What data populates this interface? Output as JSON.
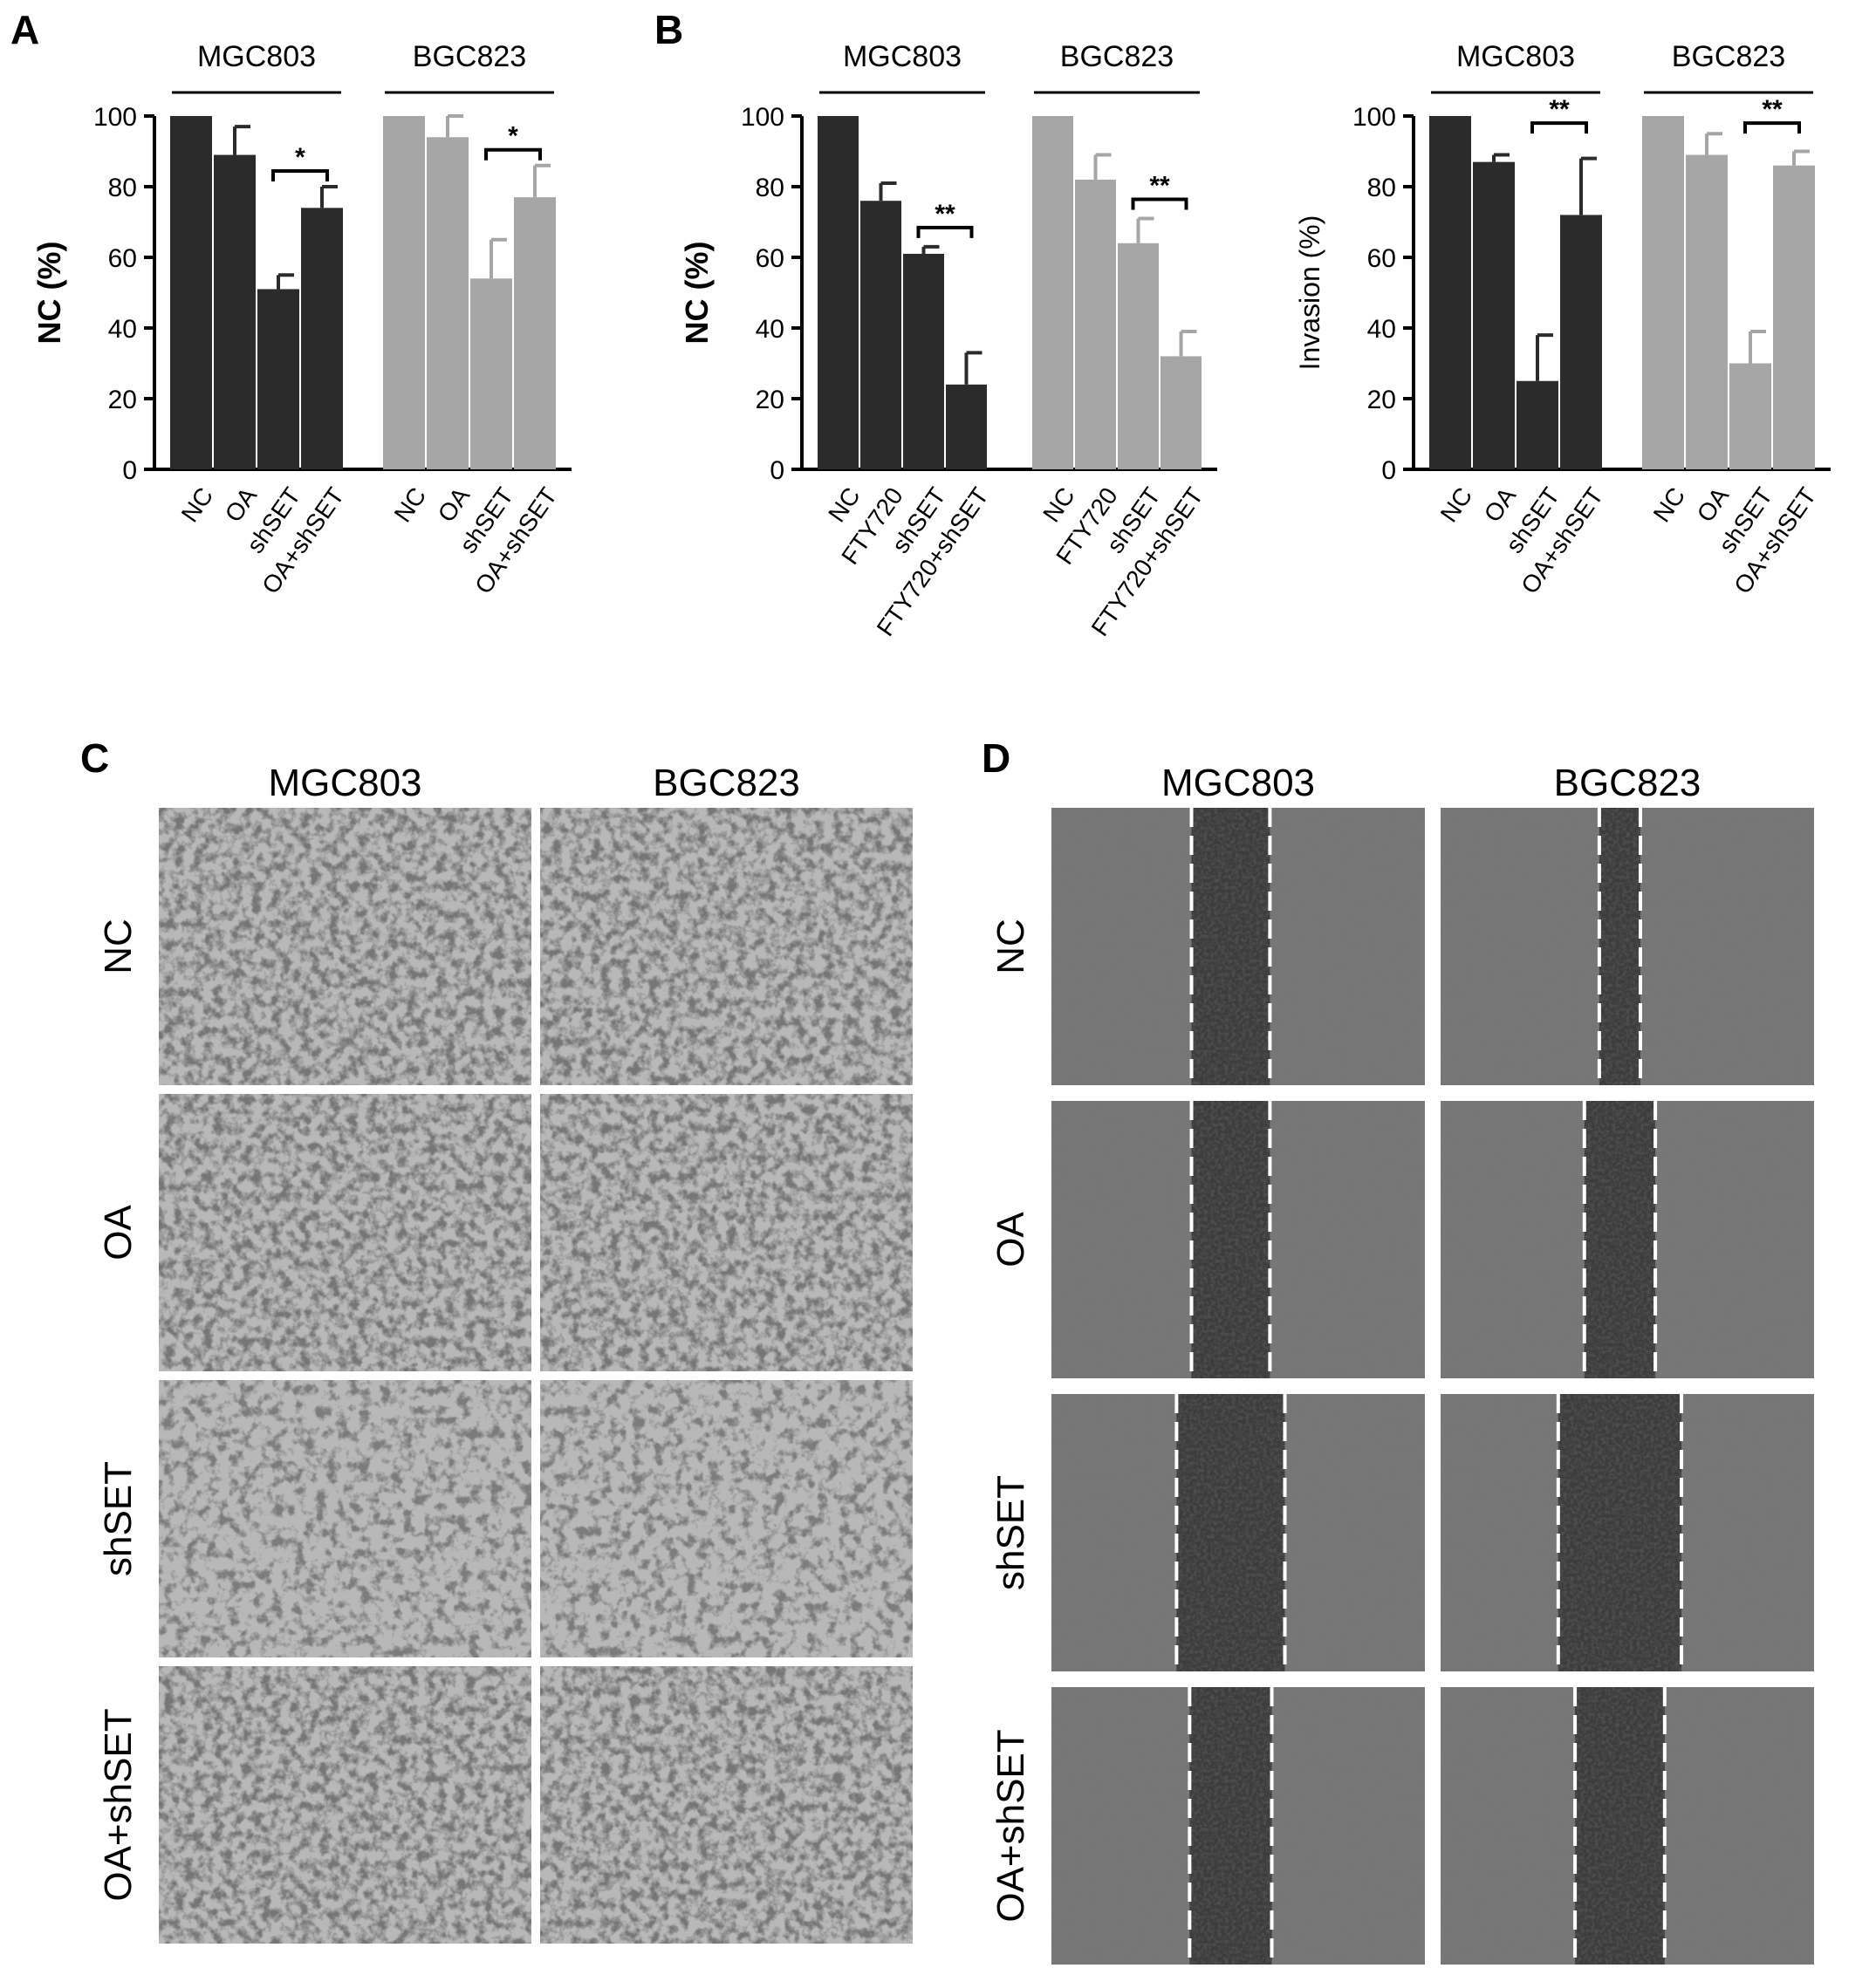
{
  "panel_labels": {
    "a": "A",
    "b": "B",
    "c": "C",
    "d": "D"
  },
  "colors": {
    "dark_bar": "#2b2b2b",
    "light_bar": "#a6a6a6",
    "axis": "#000000",
    "micro_bg": "#8a8a8a",
    "scratch_fill": "#3c3c3c",
    "dash_line": "#ffffff"
  },
  "chart_data": [
    {
      "id": "A",
      "type": "bar",
      "ylabel": "NC (%)",
      "ylim": [
        0,
        100
      ],
      "yticks": [
        0,
        20,
        40,
        60,
        80,
        100
      ],
      "groups": [
        {
          "name": "MGC803",
          "color": "dark",
          "categories": [
            "NC",
            "OA",
            "shSET",
            "OA+shSET"
          ],
          "values": [
            100,
            89,
            51,
            74
          ],
          "errors": [
            0,
            8,
            4,
            6
          ],
          "sig": {
            "between": [
              2,
              3
            ],
            "label": "*"
          }
        },
        {
          "name": "BGC823",
          "color": "light",
          "categories": [
            "NC",
            "OA",
            "shSET",
            "OA+shSET"
          ],
          "values": [
            100,
            94,
            54,
            77
          ],
          "errors": [
            0,
            6,
            11,
            9
          ],
          "sig": {
            "between": [
              2,
              3
            ],
            "label": "*"
          }
        }
      ]
    },
    {
      "id": "B1",
      "type": "bar",
      "ylabel": "NC (%)",
      "ylim": [
        0,
        100
      ],
      "yticks": [
        0,
        20,
        40,
        60,
        80,
        100
      ],
      "groups": [
        {
          "name": "MGC803",
          "color": "dark",
          "categories": [
            "NC",
            "FTY720",
            "shSET",
            "FTY720+shSET"
          ],
          "values": [
            100,
            76,
            61,
            24
          ],
          "errors": [
            0,
            5,
            2,
            9
          ],
          "sig": {
            "between": [
              2,
              3
            ],
            "label": "**"
          }
        },
        {
          "name": "BGC823",
          "color": "light",
          "categories": [
            "NC",
            "FTY720",
            "shSET",
            "FTY720+shSET"
          ],
          "values": [
            100,
            82,
            64,
            32
          ],
          "errors": [
            0,
            7,
            7,
            7
          ],
          "sig": {
            "between": [
              2,
              3
            ],
            "label": "**"
          }
        }
      ]
    },
    {
      "id": "B2",
      "type": "bar",
      "ylabel": "Invasion (%)",
      "ylim": [
        0,
        100
      ],
      "yticks": [
        0,
        20,
        40,
        60,
        80,
        100
      ],
      "groups": [
        {
          "name": "MGC803",
          "color": "dark",
          "categories": [
            "NC",
            "OA",
            "shSET",
            "OA+shSET"
          ],
          "values": [
            100,
            87,
            25,
            72
          ],
          "errors": [
            0,
            2,
            13,
            16
          ],
          "sig": {
            "between": [
              2,
              3
            ],
            "label": "**"
          }
        },
        {
          "name": "BGC823",
          "color": "light",
          "categories": [
            "NC",
            "OA",
            "shSET",
            "OA+shSET"
          ],
          "values": [
            100,
            89,
            30,
            86
          ],
          "errors": [
            0,
            6,
            9,
            4
          ],
          "sig": {
            "between": [
              2,
              3
            ],
            "label": "**"
          }
        }
      ]
    }
  ],
  "micrographs": {
    "C": {
      "columns": [
        "MGC803",
        "BGC823"
      ],
      "rows": [
        "NC",
        "OA",
        "shSET",
        "OA+shSET"
      ]
    },
    "D": {
      "columns": [
        "MGC803",
        "BGC823"
      ],
      "rows": [
        "NC",
        "OA",
        "shSET",
        "OA+shSET"
      ],
      "gap_fraction": [
        [
          0.21,
          0.11
        ],
        [
          0.21,
          0.19
        ],
        [
          0.29,
          0.33
        ],
        [
          0.22,
          0.24
        ]
      ]
    }
  }
}
